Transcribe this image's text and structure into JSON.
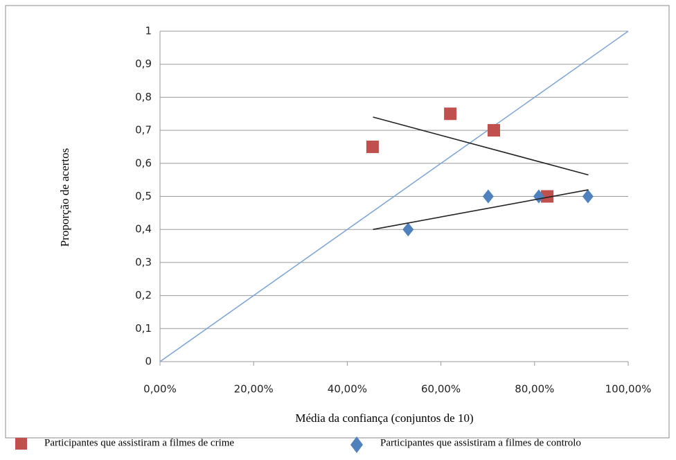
{
  "chart_data": {
    "type": "scatter",
    "xlabel": "Média da confiança (conjuntos de 10)",
    "ylabel": "Proporção de acertos",
    "xlim": [
      0,
      100
    ],
    "ylim": [
      0,
      1
    ],
    "xticks": [
      {
        "value": 0,
        "label": "0,00%"
      },
      {
        "value": 20,
        "label": "20,00%"
      },
      {
        "value": 40,
        "label": "40,00%"
      },
      {
        "value": 60,
        "label": "60,00%"
      },
      {
        "value": 80,
        "label": "80,00%"
      },
      {
        "value": 100,
        "label": "100,00%"
      }
    ],
    "yticks": [
      0,
      {
        "value": 0.1,
        "label": "0,1"
      },
      {
        "value": 0.2,
        "label": "0,2"
      },
      {
        "value": 0.3,
        "label": "0,3"
      },
      {
        "value": 0.4,
        "label": "0,4"
      },
      {
        "value": 0.5,
        "label": "0,5"
      },
      {
        "value": 0.6,
        "label": "0,6"
      },
      {
        "value": 0.7,
        "label": "0,7"
      },
      {
        "value": 0.8,
        "label": "0,8"
      },
      {
        "value": 0.9,
        "label": "0,9"
      },
      1
    ],
    "grid": true,
    "series": [
      {
        "name": "Participantes que assistiram a filmes de crime",
        "color": "#c0504d",
        "marker": "square",
        "x": [
          45.4,
          62.0,
          71.3,
          82.7
        ],
        "values": [
          0.65,
          0.75,
          0.7,
          0.5
        ],
        "trendline": {
          "x": [
            45.5,
            91.5
          ],
          "y": [
            0.74,
            0.565
          ]
        }
      },
      {
        "name": "Participantes que assistiram a filmes de controlo",
        "color": "#4f81bd",
        "marker": "diamond",
        "x": [
          53.0,
          70.1,
          80.9,
          91.4
        ],
        "values": [
          0.4,
          0.5,
          0.5,
          0.5
        ],
        "trendline": {
          "x": [
            45.5,
            91.5
          ],
          "y": [
            0.4,
            0.52
          ]
        }
      }
    ],
    "reference_line": {
      "x": [
        0,
        100
      ],
      "y": [
        0,
        1
      ],
      "color": "#7ca3d6"
    }
  }
}
